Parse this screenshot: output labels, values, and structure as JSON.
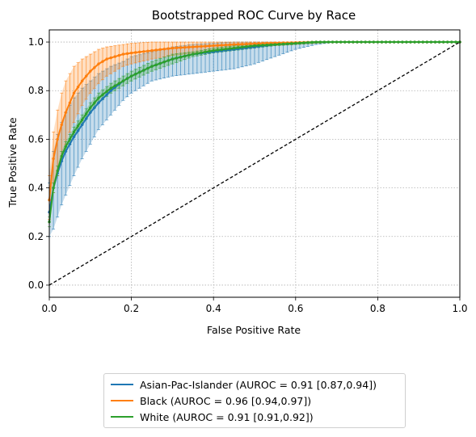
{
  "chart_data": {
    "type": "line",
    "title": "Bootstrapped ROC Curve by Race",
    "xlabel": "False Positive Rate",
    "ylabel": "True Positive Rate",
    "xlim": [
      0,
      1
    ],
    "ylim": [
      -0.05,
      1.05
    ],
    "xticks": [
      "0.0",
      "0.2",
      "0.4",
      "0.6",
      "0.8",
      "1.0"
    ],
    "yticks": [
      "0.0",
      "0.2",
      "0.4",
      "0.6",
      "0.8",
      "1.0"
    ],
    "grid": true,
    "legend_position": "below",
    "reference_line": {
      "x": [
        0,
        1
      ],
      "y": [
        0,
        1
      ],
      "style": "dashed",
      "color": "#000000"
    },
    "series": [
      {
        "name": "Asian-Pac-Islander (AUROC = 0.91 [0.87,0.94])",
        "color": "#1f77b4",
        "x": [
          0.0,
          0.01,
          0.02,
          0.03,
          0.04,
          0.05,
          0.06,
          0.08,
          0.1,
          0.12,
          0.15,
          0.18,
          0.2,
          0.25,
          0.3,
          0.35,
          0.4,
          0.45,
          0.5,
          0.55,
          0.6,
          0.65,
          0.7,
          0.8,
          0.9,
          1.0
        ],
        "y": [
          0.3,
          0.4,
          0.46,
          0.51,
          0.55,
          0.58,
          0.61,
          0.66,
          0.71,
          0.75,
          0.8,
          0.84,
          0.86,
          0.9,
          0.93,
          0.95,
          0.96,
          0.97,
          0.98,
          0.99,
          0.995,
          1.0,
          1.0,
          1.0,
          1.0,
          1.0
        ],
        "lower": [
          0.2,
          0.23,
          0.28,
          0.33,
          0.37,
          0.41,
          0.45,
          0.52,
          0.58,
          0.64,
          0.7,
          0.76,
          0.79,
          0.84,
          0.86,
          0.87,
          0.88,
          0.89,
          0.91,
          0.94,
          0.97,
          0.99,
          1.0,
          1.0,
          1.0,
          1.0
        ],
        "upper": [
          0.42,
          0.55,
          0.62,
          0.67,
          0.71,
          0.74,
          0.77,
          0.81,
          0.84,
          0.87,
          0.9,
          0.92,
          0.94,
          0.96,
          0.98,
          0.99,
          0.995,
          1.0,
          1.0,
          1.0,
          1.0,
          1.0,
          1.0,
          1.0,
          1.0,
          1.0
        ]
      },
      {
        "name": "Black (AUROC = 0.96 [0.94,0.97])",
        "color": "#ff7f0e",
        "x": [
          0.0,
          0.01,
          0.02,
          0.03,
          0.04,
          0.05,
          0.06,
          0.08,
          0.1,
          0.12,
          0.14,
          0.16,
          0.18,
          0.2,
          0.25,
          0.3,
          0.35,
          0.4,
          0.45,
          0.5,
          0.55,
          0.6,
          0.65,
          0.7,
          0.8,
          0.9,
          1.0
        ],
        "y": [
          0.35,
          0.52,
          0.6,
          0.66,
          0.71,
          0.75,
          0.79,
          0.84,
          0.88,
          0.91,
          0.93,
          0.94,
          0.95,
          0.955,
          0.965,
          0.975,
          0.98,
          0.985,
          0.99,
          0.993,
          0.996,
          0.998,
          1.0,
          1.0,
          1.0,
          1.0,
          1.0
        ],
        "lower": [
          0.27,
          0.38,
          0.45,
          0.52,
          0.58,
          0.63,
          0.67,
          0.74,
          0.79,
          0.83,
          0.86,
          0.88,
          0.9,
          0.91,
          0.93,
          0.945,
          0.955,
          0.965,
          0.975,
          0.98,
          0.985,
          0.99,
          0.995,
          1.0,
          1.0,
          1.0,
          1.0
        ],
        "upper": [
          0.45,
          0.63,
          0.72,
          0.79,
          0.84,
          0.87,
          0.9,
          0.93,
          0.95,
          0.97,
          0.98,
          0.985,
          0.99,
          0.995,
          1.0,
          1.0,
          1.0,
          1.0,
          1.0,
          1.0,
          1.0,
          1.0,
          1.0,
          1.0,
          1.0,
          1.0,
          1.0
        ]
      },
      {
        "name": "White (AUROC = 0.91 [0.91,0.92])",
        "color": "#2ca02c",
        "x": [
          0.0,
          0.01,
          0.02,
          0.03,
          0.04,
          0.05,
          0.06,
          0.08,
          0.1,
          0.12,
          0.15,
          0.18,
          0.2,
          0.25,
          0.3,
          0.35,
          0.4,
          0.45,
          0.5,
          0.55,
          0.6,
          0.65,
          0.7,
          0.8,
          0.9,
          1.0
        ],
        "y": [
          0.26,
          0.4,
          0.47,
          0.53,
          0.57,
          0.6,
          0.63,
          0.68,
          0.73,
          0.77,
          0.81,
          0.84,
          0.86,
          0.9,
          0.93,
          0.95,
          0.965,
          0.975,
          0.985,
          0.99,
          0.995,
          1.0,
          1.0,
          1.0,
          1.0,
          1.0
        ],
        "lower": [
          0.24,
          0.38,
          0.45,
          0.51,
          0.55,
          0.58,
          0.61,
          0.66,
          0.71,
          0.75,
          0.79,
          0.82,
          0.84,
          0.88,
          0.91,
          0.94,
          0.955,
          0.965,
          0.975,
          0.985,
          0.99,
          0.995,
          1.0,
          1.0,
          1.0,
          1.0
        ],
        "upper": [
          0.28,
          0.42,
          0.49,
          0.55,
          0.59,
          0.62,
          0.65,
          0.7,
          0.75,
          0.79,
          0.83,
          0.86,
          0.88,
          0.92,
          0.95,
          0.96,
          0.975,
          0.985,
          0.99,
          0.995,
          1.0,
          1.0,
          1.0,
          1.0,
          1.0,
          1.0
        ]
      }
    ]
  }
}
